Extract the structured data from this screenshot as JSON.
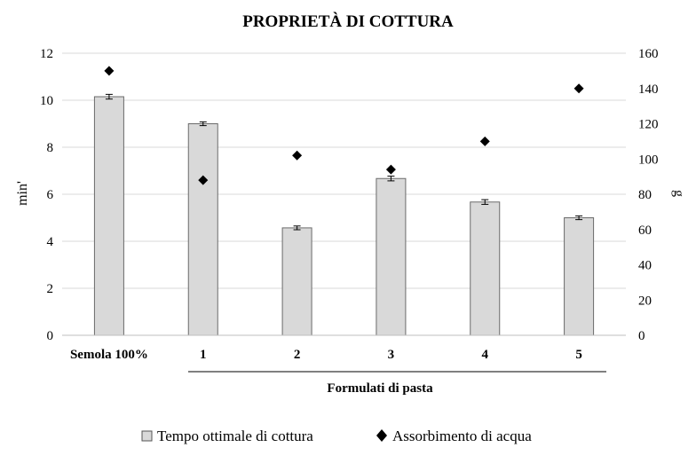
{
  "chart_data": {
    "type": "bar",
    "title": "PROPRIETÀ DI COTTURA",
    "categories": [
      "Semola 100%",
      "1",
      "2",
      "3",
      "4",
      "5"
    ],
    "xlabel": "Formulati di pasta",
    "ylabel_left": "min'",
    "ylabel_right": "g",
    "ylim_left": [
      0,
      12
    ],
    "ylim_right": [
      0,
      160
    ],
    "yticks_left": [
      0,
      2,
      4,
      6,
      8,
      10,
      12
    ],
    "yticks_right": [
      0,
      20,
      40,
      60,
      80,
      100,
      120,
      140,
      160
    ],
    "grid": true,
    "legend_position": "bottom",
    "series": [
      {
        "name": "Tempo ottimale di cottura",
        "type": "bar",
        "axis": "left",
        "values": [
          10.15,
          9.0,
          4.57,
          6.67,
          5.67,
          5.0
        ],
        "errors": [
          0.1,
          0.08,
          0.08,
          0.1,
          0.1,
          0.08
        ],
        "color": "#d9d9d9"
      },
      {
        "name": "Assorbimento di acqua",
        "type": "scatter",
        "axis": "right",
        "marker": "diamond",
        "values": [
          150,
          88,
          102,
          94,
          110,
          140
        ],
        "color": "#000000"
      }
    ]
  }
}
